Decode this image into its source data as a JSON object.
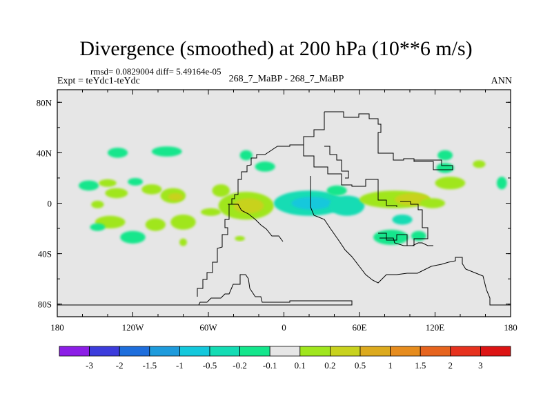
{
  "chart_data": {
    "type": "heatmap",
    "title": "Divergence (smoothed) at 200 hPa (10**6 m/s)",
    "stats": "rmsd= 0.0829004 diff= 5.49164e-05",
    "experiment": "Expt = teYdc1-teYdc",
    "center_label": "268_7_MaBP - 268_7_MaBP",
    "period": "ANN",
    "x_range": [
      -180,
      180
    ],
    "y_range": [
      -90,
      90
    ],
    "x_ticks": [
      {
        "value": -180,
        "label": "180"
      },
      {
        "value": -120,
        "label": "120W"
      },
      {
        "value": -60,
        "label": "60W"
      },
      {
        "value": 0,
        "label": "0"
      },
      {
        "value": 60,
        "label": "60E"
      },
      {
        "value": 120,
        "label": "120E"
      },
      {
        "value": 180,
        "label": "180"
      }
    ],
    "y_ticks": [
      {
        "value": 80,
        "label": "80N"
      },
      {
        "value": 40,
        "label": "40N"
      },
      {
        "value": 0,
        "label": "0"
      },
      {
        "value": -40,
        "label": "40S"
      },
      {
        "value": -80,
        "label": "80S"
      }
    ],
    "colorbar": {
      "colors": [
        "#8c1ee6",
        "#3c3cdc",
        "#1e6edc",
        "#1e9bdc",
        "#14c8dc",
        "#14dcb4",
        "#14e68c",
        "#e6e6e6",
        "#a0e61e",
        "#c8d21e",
        "#dcaa1e",
        "#e68c1e",
        "#e6641e",
        "#e6321e",
        "#dc1414"
      ],
      "labels": [
        "-3",
        "-2",
        "-1.5",
        "-1",
        "-0.5",
        "-0.2",
        "-0.1",
        "0.1",
        "0.2",
        "0.5",
        "1",
        "1.5",
        "2",
        "3"
      ]
    },
    "features": [
      {
        "lon": -155,
        "lat": 14,
        "rx": 8,
        "ry": 4,
        "level": 6
      },
      {
        "lon": -118,
        "lat": 17,
        "rx": 6,
        "ry": 3,
        "level": 6
      },
      {
        "lon": -140,
        "lat": 16,
        "rx": 7,
        "ry": 3,
        "level": 8
      },
      {
        "lon": -133,
        "lat": 8,
        "rx": 9,
        "ry": 4,
        "level": 8
      },
      {
        "lon": -105,
        "lat": 11,
        "rx": 8,
        "ry": 4,
        "level": 8
      },
      {
        "lon": -148,
        "lat": -1,
        "rx": 5,
        "ry": 3,
        "level": 8
      },
      {
        "lon": -93,
        "lat": 41,
        "rx": 12,
        "ry": 4,
        "level": 6
      },
      {
        "lon": -132,
        "lat": 40,
        "rx": 8,
        "ry": 4,
        "level": 6
      },
      {
        "lon": -88,
        "lat": 6,
        "rx": 10,
        "ry": 6,
        "level": 8
      },
      {
        "lon": -86,
        "lat": 5,
        "rx": 6,
        "ry": 3,
        "level": 9
      },
      {
        "lon": -50,
        "lat": 10,
        "rx": 7,
        "ry": 5,
        "level": 8
      },
      {
        "lon": -30,
        "lat": 38,
        "rx": 5,
        "ry": 4,
        "level": 6
      },
      {
        "lon": -15,
        "lat": 29,
        "rx": 8,
        "ry": 4,
        "level": 6
      },
      {
        "lon": -30,
        "lat": -2,
        "rx": 22,
        "ry": 11,
        "level": 8
      },
      {
        "lon": -28,
        "lat": -2,
        "rx": 12,
        "ry": 6,
        "level": 9
      },
      {
        "lon": 20,
        "lat": 0,
        "rx": 28,
        "ry": 10,
        "level": 5
      },
      {
        "lon": 22,
        "lat": 0,
        "rx": 16,
        "ry": 5,
        "level": 4
      },
      {
        "lon": 50,
        "lat": -2,
        "rx": 14,
        "ry": 8,
        "level": 5
      },
      {
        "lon": 42,
        "lat": 10,
        "rx": 8,
        "ry": 4,
        "level": 6
      },
      {
        "lon": 88,
        "lat": 3,
        "rx": 28,
        "ry": 7,
        "level": 8
      },
      {
        "lon": 102,
        "lat": 3,
        "rx": 14,
        "ry": 5,
        "level": 9
      },
      {
        "lon": 132,
        "lat": 16,
        "rx": 12,
        "ry": 5,
        "level": 8
      },
      {
        "lon": 118,
        "lat": 0,
        "rx": 10,
        "ry": 4,
        "level": 8
      },
      {
        "lon": 94,
        "lat": -13,
        "rx": 8,
        "ry": 4,
        "level": 5
      },
      {
        "lon": 128,
        "lat": 38,
        "rx": 6,
        "ry": 4,
        "level": 6
      },
      {
        "lon": 128,
        "lat": 28,
        "rx": 7,
        "ry": 4,
        "level": 6
      },
      {
        "lon": 155,
        "lat": 31,
        "rx": 5,
        "ry": 3,
        "level": 8
      },
      {
        "lon": 173,
        "lat": 16,
        "rx": 4,
        "ry": 5,
        "level": 6
      },
      {
        "lon": 85,
        "lat": -27,
        "rx": 14,
        "ry": 6,
        "level": 6
      },
      {
        "lon": 107,
        "lat": -26,
        "rx": 6,
        "ry": 4,
        "level": 6
      },
      {
        "lon": -138,
        "lat": -15,
        "rx": 12,
        "ry": 5,
        "level": 8
      },
      {
        "lon": -102,
        "lat": -17,
        "rx": 8,
        "ry": 5,
        "level": 8
      },
      {
        "lon": -80,
        "lat": -15,
        "rx": 10,
        "ry": 6,
        "level": 8
      },
      {
        "lon": -58,
        "lat": -7,
        "rx": 8,
        "ry": 3,
        "level": 8
      },
      {
        "lon": -120,
        "lat": -27,
        "rx": 10,
        "ry": 5,
        "level": 6
      },
      {
        "lon": -148,
        "lat": -19,
        "rx": 6,
        "ry": 3,
        "level": 6
      },
      {
        "lon": -80,
        "lat": -31,
        "rx": 3,
        "ry": 3,
        "level": 8
      },
      {
        "lon": -35,
        "lat": -28,
        "rx": 4,
        "ry": 2,
        "level": 8
      }
    ]
  }
}
